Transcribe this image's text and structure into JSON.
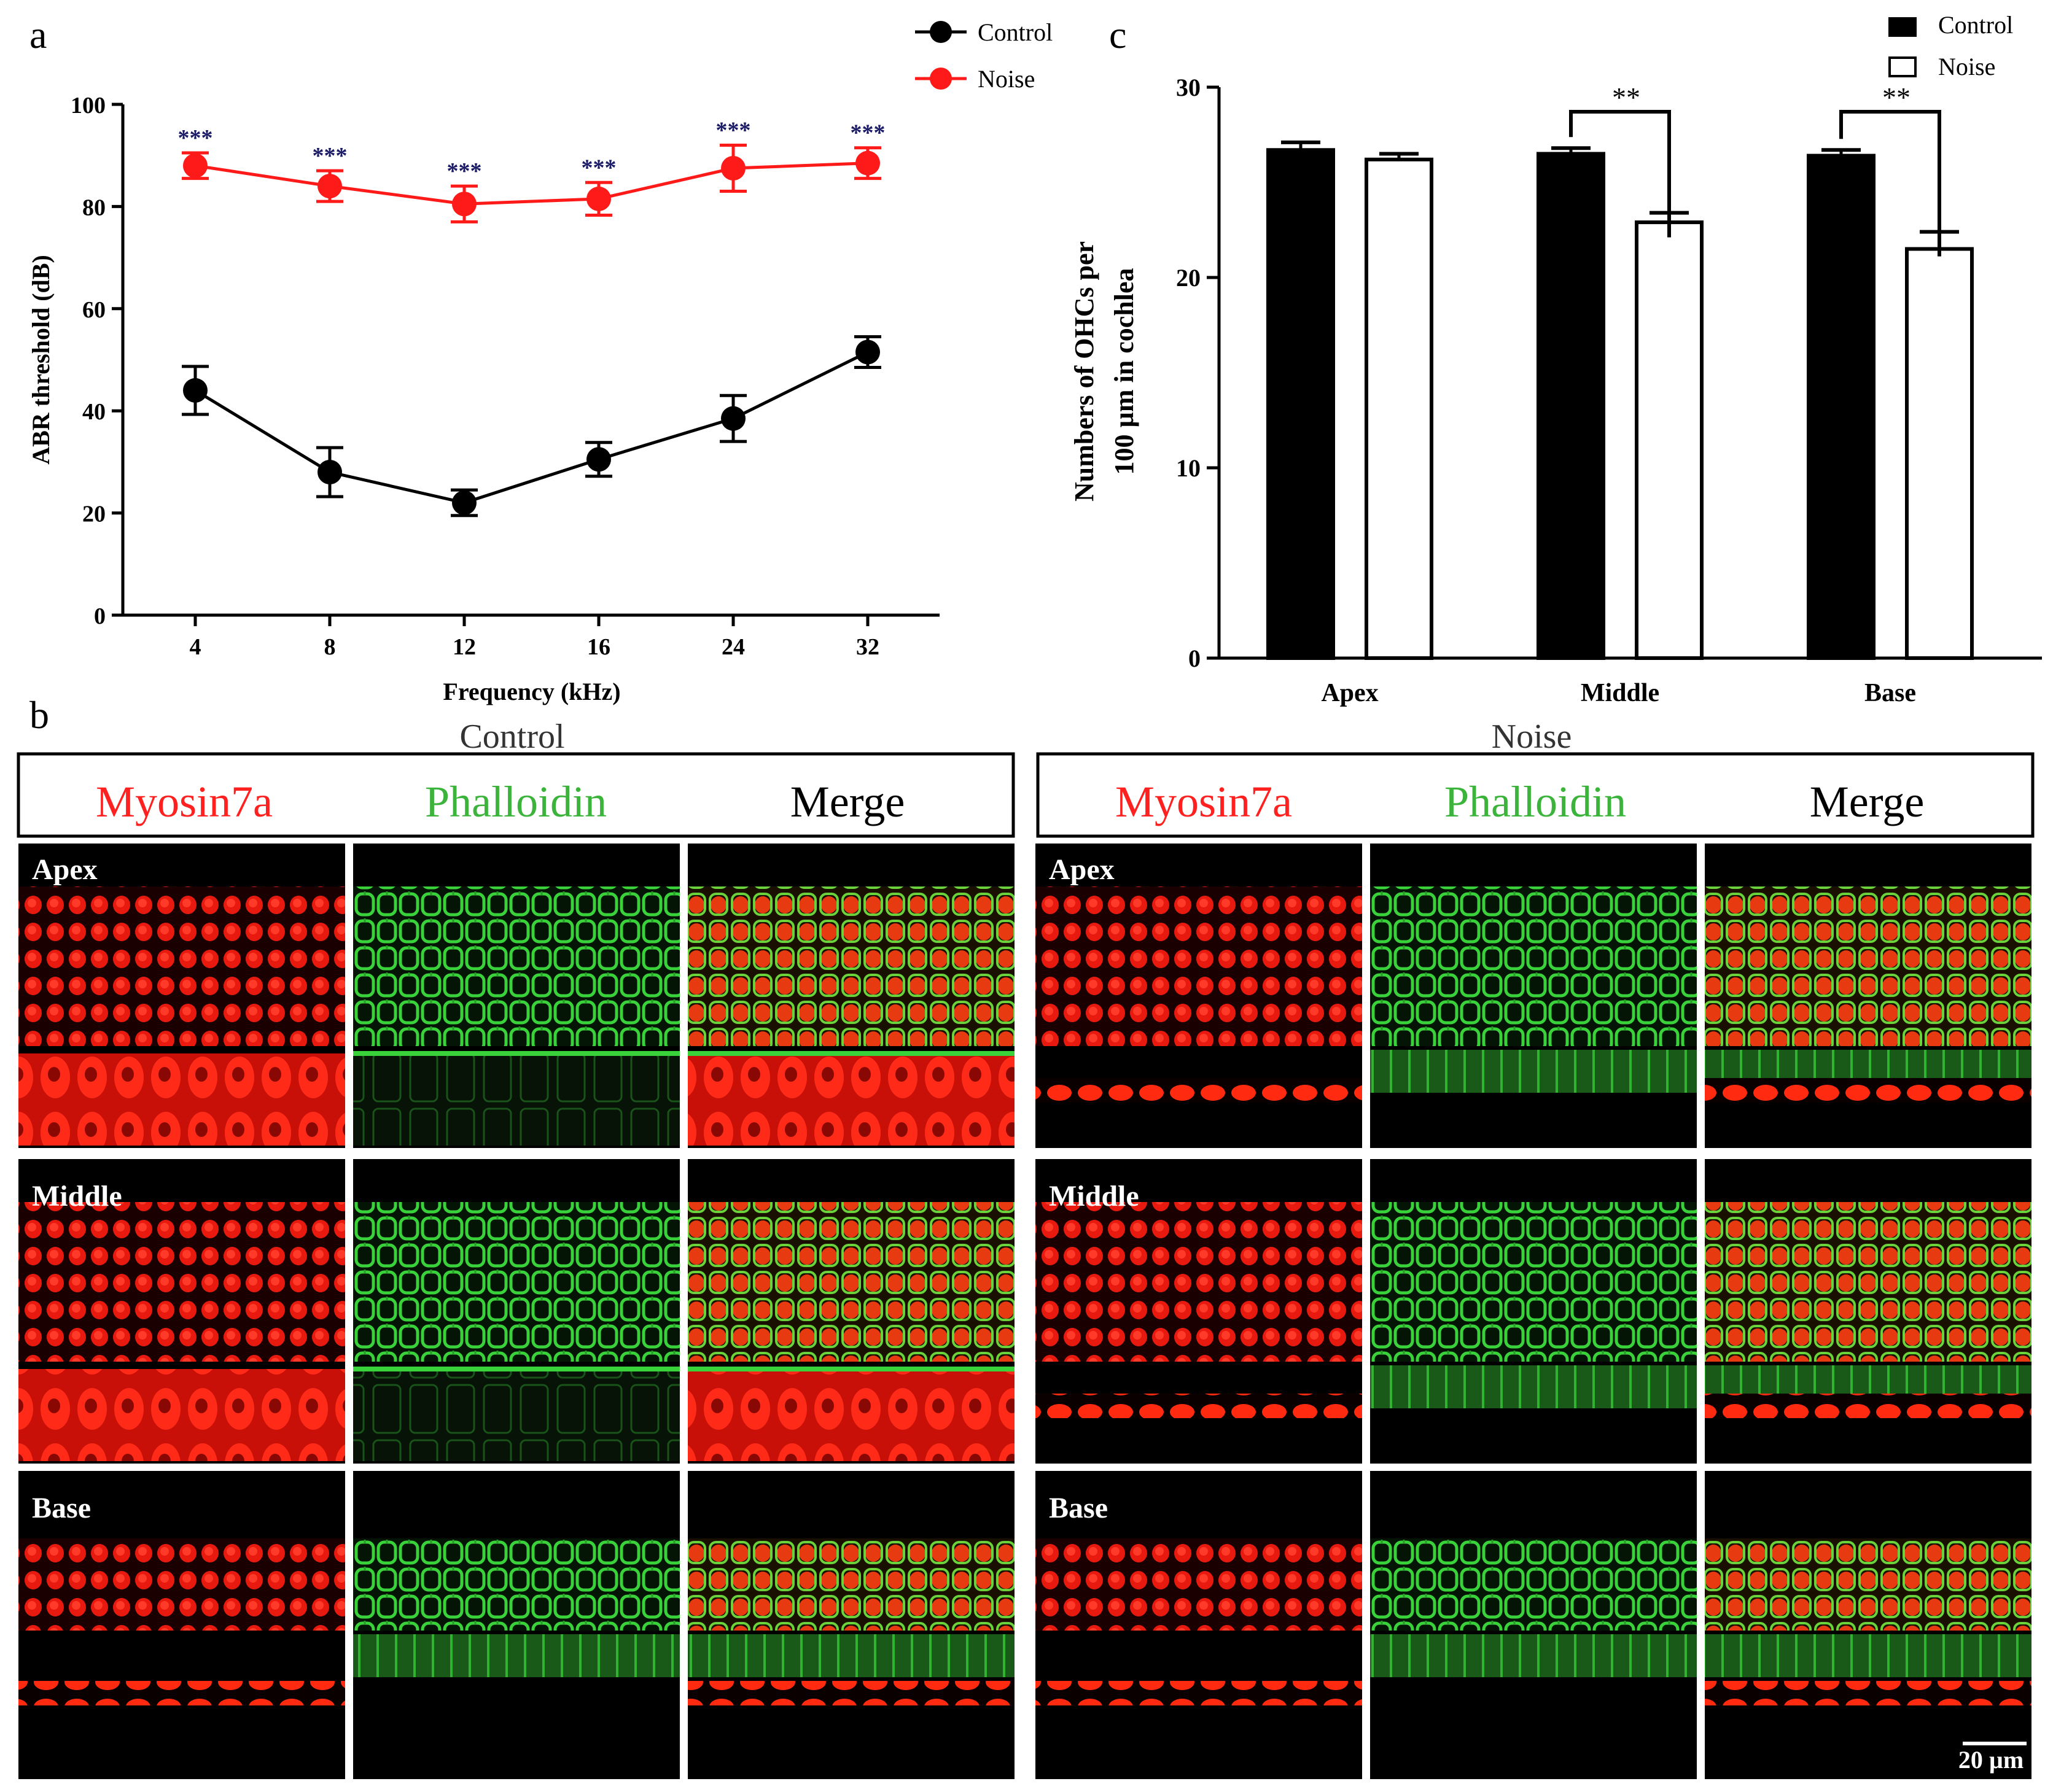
{
  "panel_labels": {
    "a": "a",
    "b": "b",
    "c": "c"
  },
  "colors": {
    "control": "#000000",
    "noise": "#ff1a1a",
    "myosin": "#ff2020",
    "phalloidin": "#3cb43c",
    "merge": "#000000",
    "sig": "#1a1a66"
  },
  "chart_data": [
    {
      "type": "line",
      "panel": "a",
      "categories": [
        "4",
        "8",
        "12",
        "16",
        "24",
        "32"
      ],
      "xlabel": "Frequency (kHz)",
      "ylabel": "ABR threshold (dB)",
      "ylim": [
        0,
        100
      ],
      "yticks": [
        "0",
        "20",
        "40",
        "60",
        "80",
        "100"
      ],
      "legend_position": "top-right",
      "legend": [
        "Control",
        "Noise"
      ],
      "series": [
        {
          "name": "Control",
          "values": [
            44,
            28,
            22,
            30.5,
            38.5,
            51.5
          ],
          "errors": [
            4.7,
            4.8,
            2.5,
            3.3,
            4.5,
            3
          ]
        },
        {
          "name": "Noise",
          "values": [
            88,
            84,
            80.5,
            81.5,
            87.5,
            88.5
          ],
          "errors": [
            2.5,
            3,
            3.5,
            3.2,
            4.5,
            3
          ]
        }
      ],
      "significance": [
        "***",
        "***",
        "***",
        "***",
        "***",
        "***"
      ]
    },
    {
      "type": "bar",
      "panel": "c",
      "categories": [
        "Apex",
        "Middle",
        "Base"
      ],
      "ylabel_lines": [
        "Numbers of OHCs per",
        "100 µm in cochlea"
      ],
      "ylim": [
        0,
        30
      ],
      "yticks": [
        "0",
        "10",
        "20",
        "30"
      ],
      "legend_position": "top-right",
      "legend": [
        "Control",
        "Noise"
      ],
      "series": [
        {
          "name": "Control",
          "values": [
            26.7,
            26.5,
            26.4
          ],
          "errors": [
            0.4,
            0.3,
            0.3
          ]
        },
        {
          "name": "Noise",
          "values": [
            26.2,
            22.9,
            21.5
          ],
          "errors": [
            0.3,
            0.5,
            0.9
          ]
        }
      ],
      "significance": [
        {
          "category": "Middle",
          "label": "**"
        },
        {
          "category": "Base",
          "label": "**"
        }
      ]
    }
  ],
  "micrographs": {
    "groups": [
      "Control",
      "Noise"
    ],
    "channels": [
      "Myosin7a",
      "Phalloidin",
      "Merge"
    ],
    "regions": [
      "Apex",
      "Middle",
      "Base"
    ],
    "scale_bar": "20 µm"
  }
}
